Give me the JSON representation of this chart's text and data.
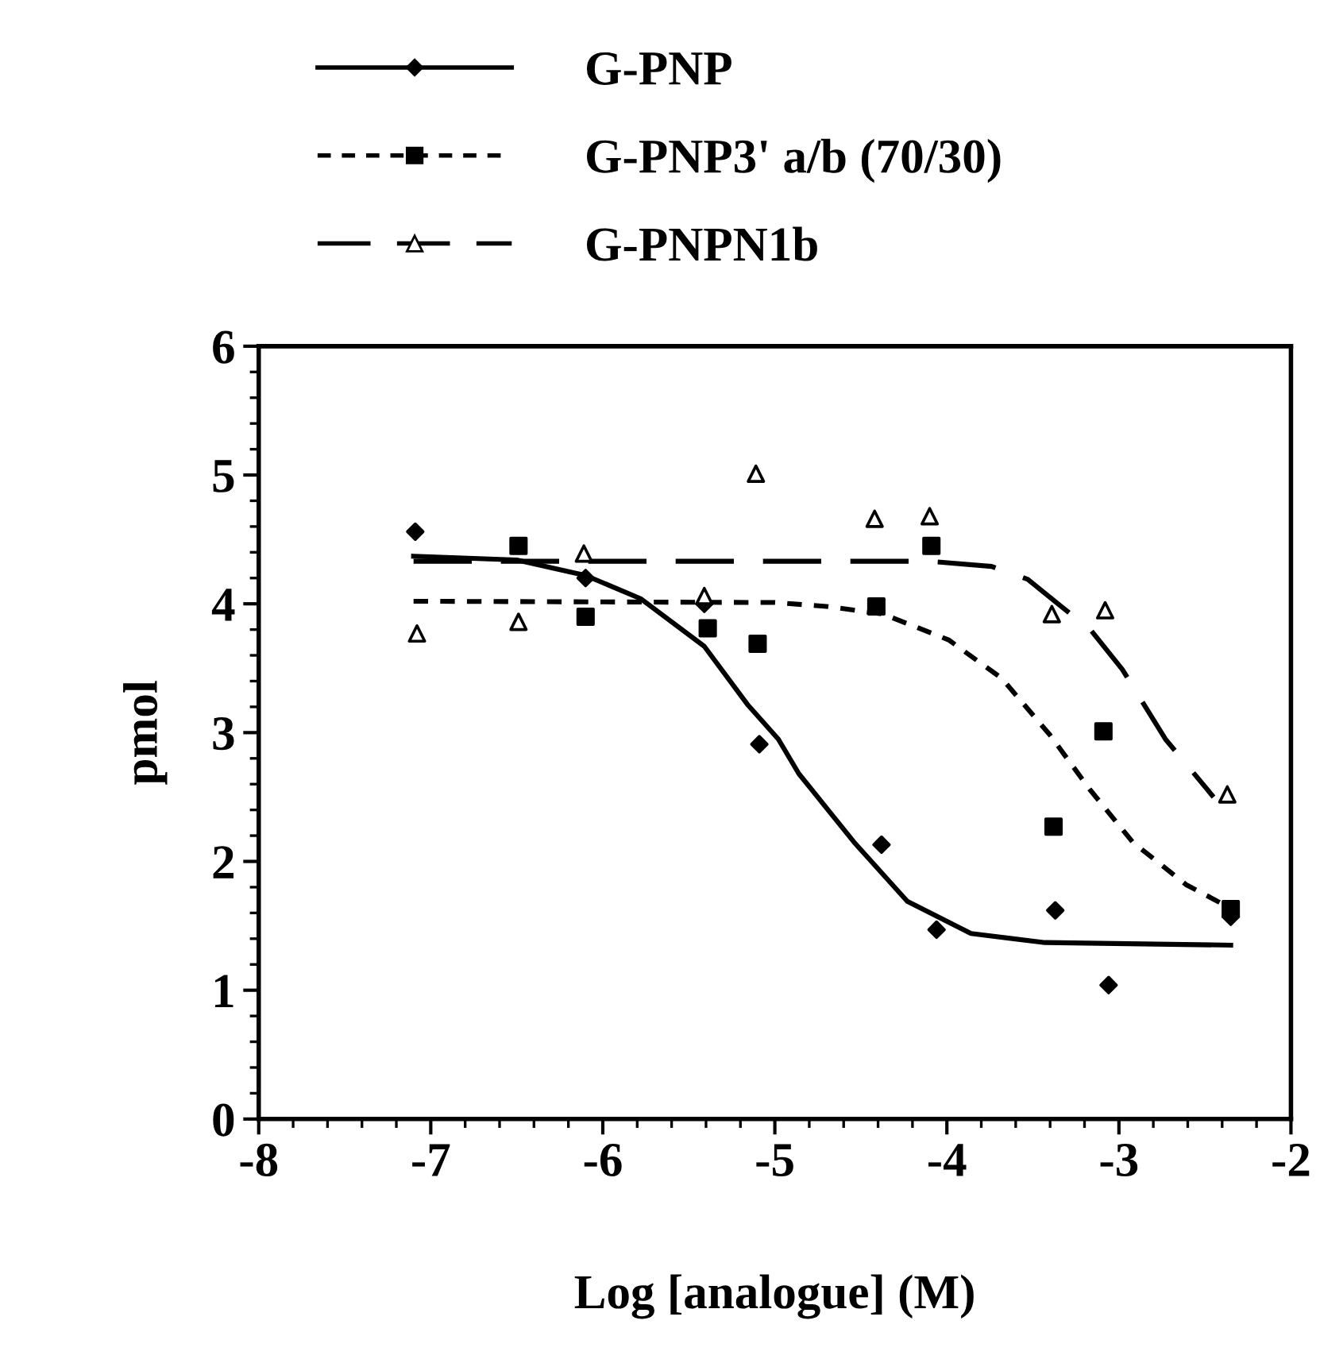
{
  "chart_data": {
    "type": "scatter",
    "xlabel": "Log [analogue] (M)",
    "ylabel": "pmol",
    "xlim": [
      -8,
      -2
    ],
    "xticks": [
      -8,
      -7,
      -6,
      -5,
      -4,
      -3,
      -2
    ],
    "ylim": [
      0,
      6
    ],
    "yticks": [
      0,
      1,
      2,
      3,
      4,
      5,
      6
    ],
    "grid": false,
    "legend": "top",
    "series": [
      {
        "name": "G-PNP",
        "marker": "diamond",
        "line_style": "solid",
        "color": "#000000",
        "x": [
          -7.09,
          -6.1,
          -5.41,
          -5.09,
          -4.38,
          -4.06,
          -3.37,
          -3.06,
          -2.35
        ],
        "values": [
          4.56,
          4.2,
          4.0,
          2.91,
          2.13,
          1.47,
          1.62,
          1.04,
          1.57
        ]
      },
      {
        "name": "G-PNP3' a/b (70/30)",
        "marker": "square",
        "line_style": "dashed",
        "color": "#000000",
        "x": [
          -6.49,
          -6.1,
          -5.39,
          -5.1,
          -4.41,
          -4.09,
          -3.38,
          -3.09,
          -2.35
        ],
        "values": [
          4.45,
          3.9,
          3.81,
          3.69,
          3.98,
          4.45,
          2.27,
          3.01,
          1.63
        ]
      },
      {
        "name": "G-PNPN1b",
        "marker": "triangle",
        "line_style": "longdash",
        "color": "#000000",
        "x": [
          -7.08,
          -6.49,
          -6.11,
          -5.41,
          -5.11,
          -4.42,
          -4.1,
          -3.39,
          -3.08,
          -2.37
        ],
        "values": [
          3.77,
          3.86,
          4.39,
          4.06,
          5.01,
          4.66,
          4.68,
          3.92,
          3.95,
          2.52
        ]
      },
      {
        "type": "line",
        "line_style": "solid",
        "color": "#000000",
        "x": [
          -7.1,
          -6.5,
          -6.1,
          -5.78,
          -5.41,
          -5.16,
          -4.98,
          -4.86,
          -4.54,
          -4.23,
          -3.86,
          -3.43,
          -2.35
        ],
        "values": [
          4.37,
          4.34,
          4.22,
          4.04,
          3.67,
          3.22,
          2.95,
          2.68,
          2.15,
          1.69,
          1.44,
          1.37,
          1.35
        ]
      },
      {
        "type": "line",
        "line_style": "dashed",
        "color": "#000000",
        "x": [
          -7.1,
          -5.0,
          -4.7,
          -4.37,
          -3.99,
          -3.68,
          -3.4,
          -3.17,
          -2.92,
          -2.61,
          -2.37
        ],
        "values": [
          4.02,
          4.01,
          3.98,
          3.92,
          3.72,
          3.42,
          2.98,
          2.56,
          2.15,
          1.82,
          1.65
        ]
      },
      {
        "type": "line",
        "line_style": "longdash",
        "color": "#000000",
        "x": [
          -7.1,
          -4.1,
          -3.74,
          -3.53,
          -3.16,
          -2.98,
          -2.73,
          -2.45
        ],
        "values": [
          4.33,
          4.33,
          4.29,
          4.19,
          3.79,
          3.49,
          2.95,
          2.5
        ]
      }
    ]
  }
}
